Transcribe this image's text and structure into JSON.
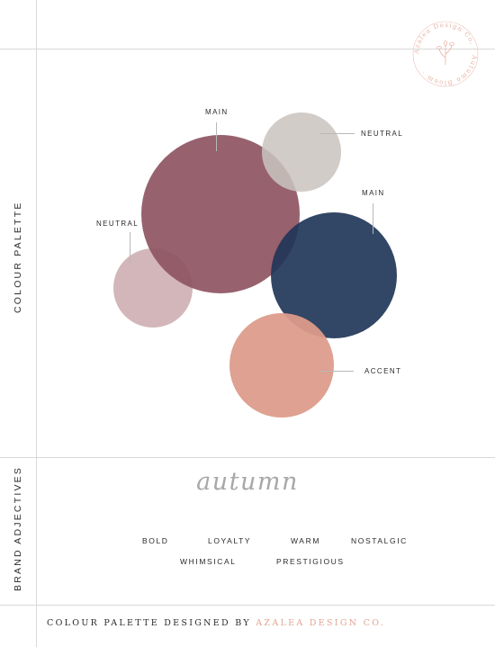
{
  "side_labels": {
    "colour_palette": "COLOUR PALETTE",
    "brand_adjectives": "BRAND ADJECTIVES"
  },
  "swatches": [
    {
      "id": "main-mauve",
      "label": "MAIN",
      "color": "#8f5563"
    },
    {
      "id": "neutral-grey",
      "label": "NEUTRAL",
      "color": "#c9c4bf"
    },
    {
      "id": "main-navy",
      "label": "MAIN",
      "color": "#213658"
    },
    {
      "id": "neutral-blush",
      "label": "NEUTRAL",
      "color": "#d3b6b9"
    },
    {
      "id": "accent-peach",
      "label": "ACCENT",
      "color": "#dd9b8a"
    }
  ],
  "season_word": "autumn",
  "adjectives": [
    "BOLD",
    "LOYALTY",
    "WARM",
    "NOSTALGIC",
    "WHIMSICAL",
    "PRESTIGIOUS"
  ],
  "footer": {
    "prefix": "COLOUR PALETTE DESIGNED BY",
    "brand": "AZALEA DESIGN CO."
  },
  "seal": {
    "text": "Azalea Design Co. Autumn Bloom",
    "color": "#e9b4a6"
  }
}
